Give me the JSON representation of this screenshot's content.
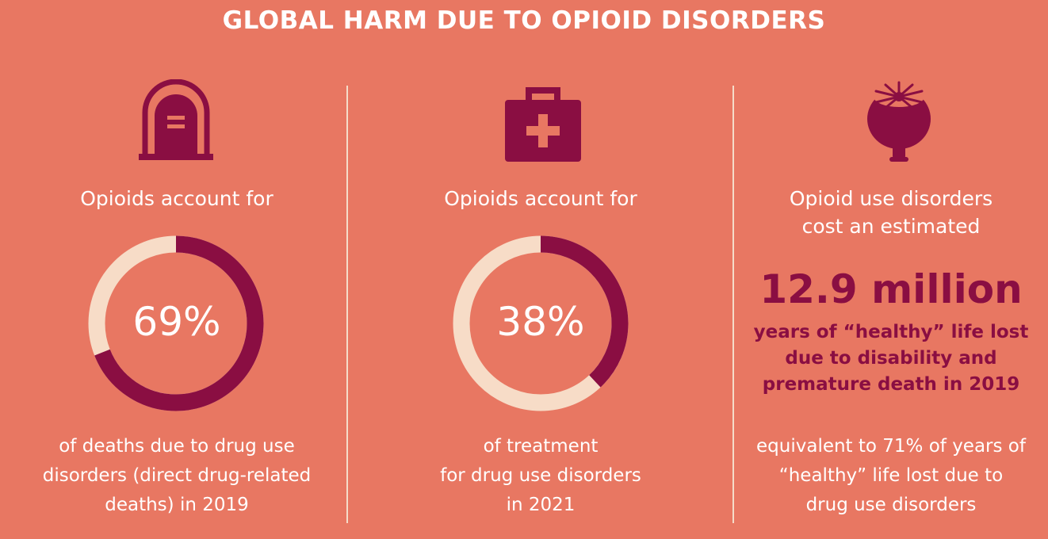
{
  "title": "GLOBAL HARM DUE TO OPIOID DISORDERS",
  "colors": {
    "background": "#E87762",
    "accent": "#8A0E42",
    "track": "#F7DCC7",
    "text": "#FFFFFF"
  },
  "panels": [
    {
      "icon": "gravestone-icon",
      "intro": "Opioids account for",
      "percent_label": "69%",
      "percent_value": 69,
      "footnote": [
        "of deaths due to drug use",
        "disorders (direct drug-related",
        "deaths) in 2019"
      ]
    },
    {
      "icon": "first-aid-kit-icon",
      "intro": "Opioids account for",
      "percent_label": "38%",
      "percent_value": 38,
      "footnote": [
        "of treatment",
        "for drug use disorders",
        "in 2021"
      ]
    },
    {
      "icon": "poppy-pod-icon",
      "intro": [
        "Opioid use disorders",
        "cost an estimated"
      ],
      "big_number": "12.9 million",
      "highlight": [
        "years of “healthy” life lost",
        "due to disability and",
        "premature death in 2019"
      ],
      "footnote": [
        "equivalent to 71% of years of",
        "“healthy” life lost due to",
        "drug use disorders"
      ]
    }
  ]
}
